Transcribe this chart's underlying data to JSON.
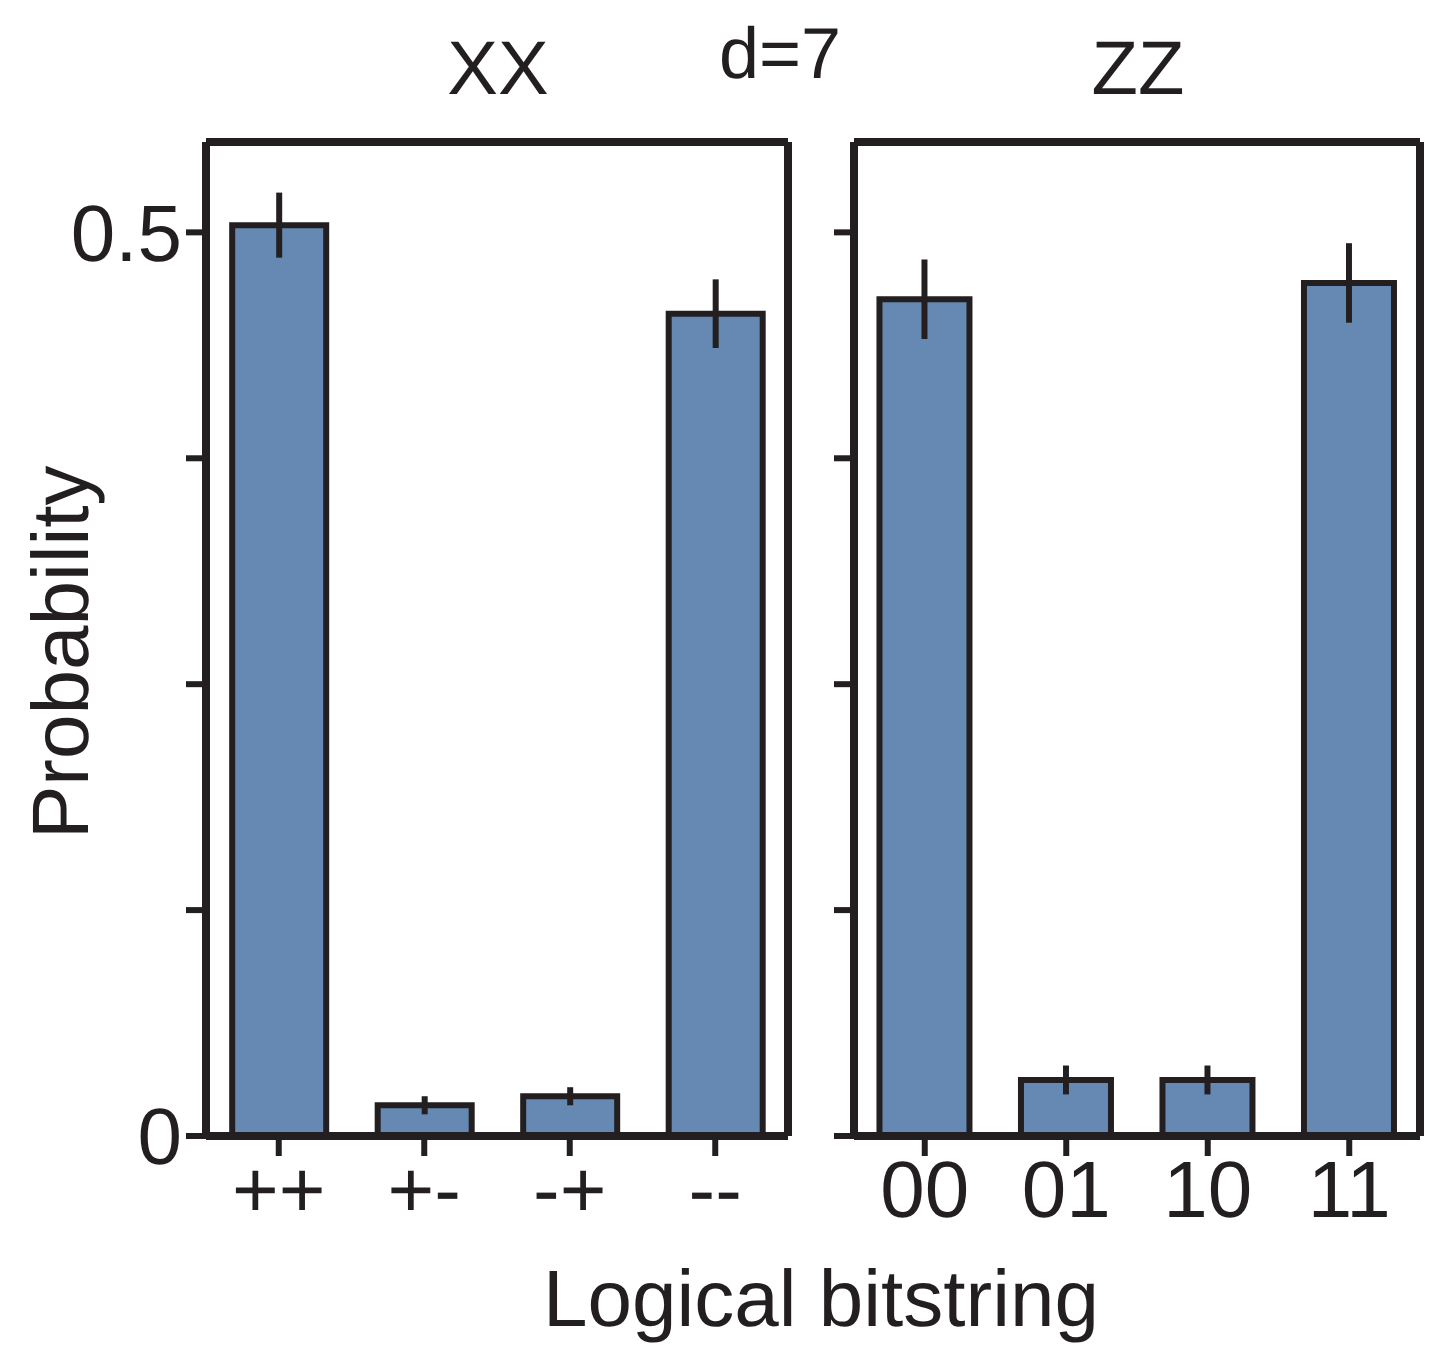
{
  "chart_data": [
    {
      "type": "bar",
      "title": "XX",
      "ylabel": "Probability",
      "xlabel": "Logical bitstring",
      "annotations": [
        "d=7"
      ],
      "categories": [
        "++",
        "+-",
        "-+",
        "--"
      ],
      "series": [
        {
          "color": "#6589b2",
          "values": [
            0.504,
            0.017,
            0.022,
            0.455
          ],
          "errors": [
            0.018,
            0.005,
            0.005,
            0.019
          ]
        }
      ],
      "ylim": [
        0,
        0.55
      ],
      "yticks": [
        0,
        {
          "value": 0.125,
          "label": null
        },
        {
          "value": 0.25,
          "label": null
        },
        {
          "value": 0.375,
          "label": null
        },
        0.5
      ]
    },
    {
      "type": "bar",
      "title": "ZZ",
      "categories": [
        "00",
        "01",
        "10",
        "11"
      ],
      "series": [
        {
          "color": "#6589b2",
          "values": [
            0.463,
            0.031,
            0.031,
            0.472
          ],
          "errors": [
            0.022,
            0.008,
            0.008,
            0.022
          ]
        }
      ],
      "ylim": [
        0,
        0.55
      ],
      "yticks": [
        {
          "value": 0,
          "label": null
        },
        {
          "value": 0.125,
          "label": null
        },
        {
          "value": 0.25,
          "label": null
        },
        {
          "value": 0.375,
          "label": null
        },
        {
          "value": 0.5,
          "label": null
        }
      ],
      "tick_labels": "x"
    }
  ]
}
